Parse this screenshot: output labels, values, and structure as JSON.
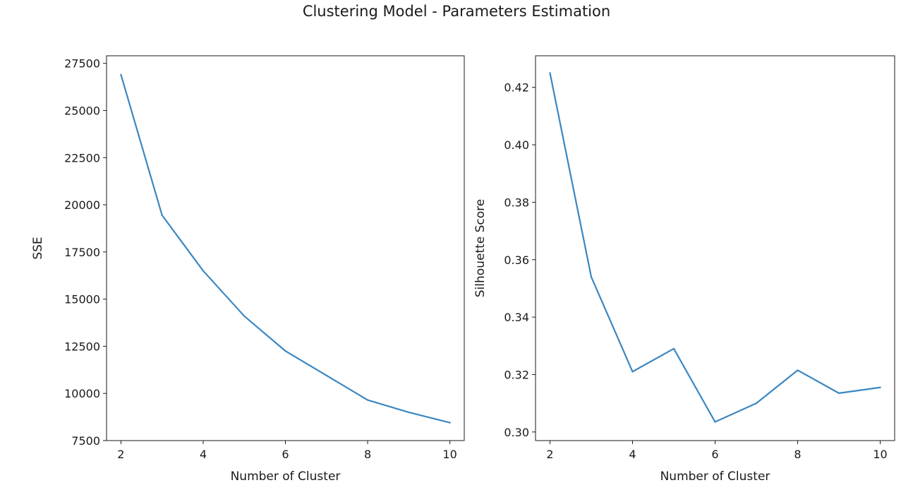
{
  "figure": {
    "title": "Clustering Model - Parameters Estimation"
  },
  "colors": {
    "line": "#3a87c2",
    "axes": "#1a1a1a",
    "background": "#ffffff"
  },
  "chart_data": [
    {
      "type": "line",
      "xlabel": "Number of Cluster",
      "ylabel": "SSE",
      "x": [
        2,
        3,
        4,
        5,
        6,
        7,
        8,
        9,
        10
      ],
      "series": [
        {
          "values": [
            26900,
            19450,
            16500,
            14100,
            12250,
            10950,
            9650,
            9000,
            8450
          ]
        }
      ],
      "xlim": [
        1.65,
        10.35
      ],
      "ylim": [
        7500,
        27900
      ],
      "xticks": [
        2,
        4,
        6,
        8,
        10
      ],
      "yticks": [
        7500,
        10000,
        12500,
        15000,
        17500,
        20000,
        22500,
        25000,
        27500
      ],
      "grid": false
    },
    {
      "type": "line",
      "xlabel": "Number of Cluster",
      "ylabel": "Silhouette Score",
      "x": [
        2,
        3,
        4,
        5,
        6,
        7,
        8,
        9,
        10
      ],
      "series": [
        {
          "values": [
            0.425,
            0.354,
            0.321,
            0.329,
            0.3035,
            0.31,
            0.3215,
            0.3135,
            0.3155
          ]
        }
      ],
      "xlim": [
        1.65,
        10.35
      ],
      "ylim": [
        0.297,
        0.431
      ],
      "xticks": [
        2,
        4,
        6,
        8,
        10
      ],
      "yticks": [
        0.3,
        0.32,
        0.34,
        0.36,
        0.38,
        0.4,
        0.42
      ],
      "ytick_decimals": 2,
      "grid": false
    }
  ]
}
